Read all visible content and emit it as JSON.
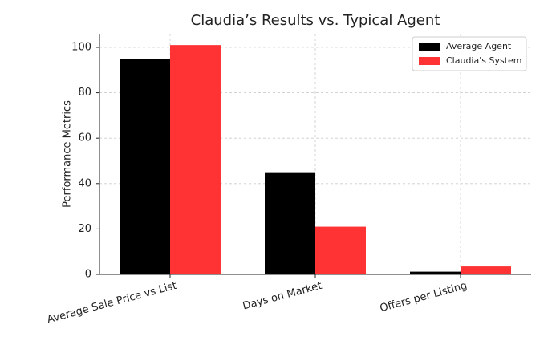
{
  "chart_data": {
    "type": "bar",
    "title": "Claudia’s Results vs. Typical Agent",
    "y_label": "Performance Metrics",
    "categories": [
      "Average Sale Price vs List",
      "Days on Market",
      "Offers per Listing"
    ],
    "series": [
      {
        "name": "Average Agent",
        "color": "#000000",
        "values": [
          95,
          45,
          1.2
        ]
      },
      {
        "name": "Claudia's System",
        "color": "#ff3333",
        "values": [
          101,
          21,
          3.5
        ]
      }
    ],
    "ylim": [
      0,
      106
    ],
    "yticks": [
      0,
      20,
      40,
      60,
      80,
      100
    ],
    "grid": true,
    "legend": "upper right"
  }
}
